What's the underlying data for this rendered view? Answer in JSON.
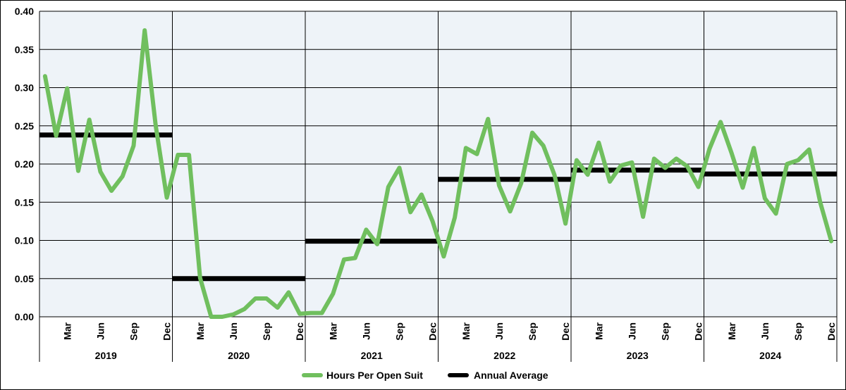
{
  "chart_data": {
    "type": "line",
    "ylim": [
      0,
      0.4
    ],
    "yticks": [
      "0.00",
      "0.05",
      "0.10",
      "0.15",
      "0.20",
      "0.25",
      "0.30",
      "0.35",
      "0.40"
    ],
    "grid": true,
    "legend_position": "bottom",
    "years": [
      "2019",
      "2020",
      "2021",
      "2022",
      "2023",
      "2024"
    ],
    "month_labels": [
      "Mar",
      "Jun",
      "Sep",
      "Dec"
    ],
    "month_label_indices": [
      2,
      5,
      8,
      11
    ],
    "colors": {
      "hours": "#70bf5e",
      "average": "#000000",
      "plot_bg": "#eef3f8"
    },
    "series": [
      {
        "name": "Hours Per Open Suit",
        "style": "line",
        "values": [
          0.315,
          0.237,
          0.299,
          0.191,
          0.258,
          0.19,
          0.165,
          0.184,
          0.224,
          0.375,
          0.25,
          0.156,
          0.212,
          0.212,
          0.051,
          0.0,
          0.0,
          0.003,
          0.01,
          0.024,
          0.024,
          0.012,
          0.032,
          0.004,
          0.005,
          0.005,
          0.03,
          0.075,
          0.077,
          0.114,
          0.095,
          0.17,
          0.195,
          0.137,
          0.16,
          0.125,
          0.079,
          0.13,
          0.221,
          0.213,
          0.259,
          0.172,
          0.138,
          0.175,
          0.241,
          0.224,
          0.186,
          0.122,
          0.205,
          0.186,
          0.228,
          0.177,
          0.198,
          0.202,
          0.131,
          0.207,
          0.195,
          0.207,
          0.197,
          0.17,
          0.22,
          0.255,
          0.214,
          0.169,
          0.221,
          0.155,
          0.135,
          0.2,
          0.205,
          0.219,
          0.15,
          0.099
        ]
      },
      {
        "name": "Annual Average",
        "style": "step",
        "values": [
          0.238,
          0.05,
          0.099,
          0.18,
          0.192,
          0.187
        ]
      }
    ]
  }
}
